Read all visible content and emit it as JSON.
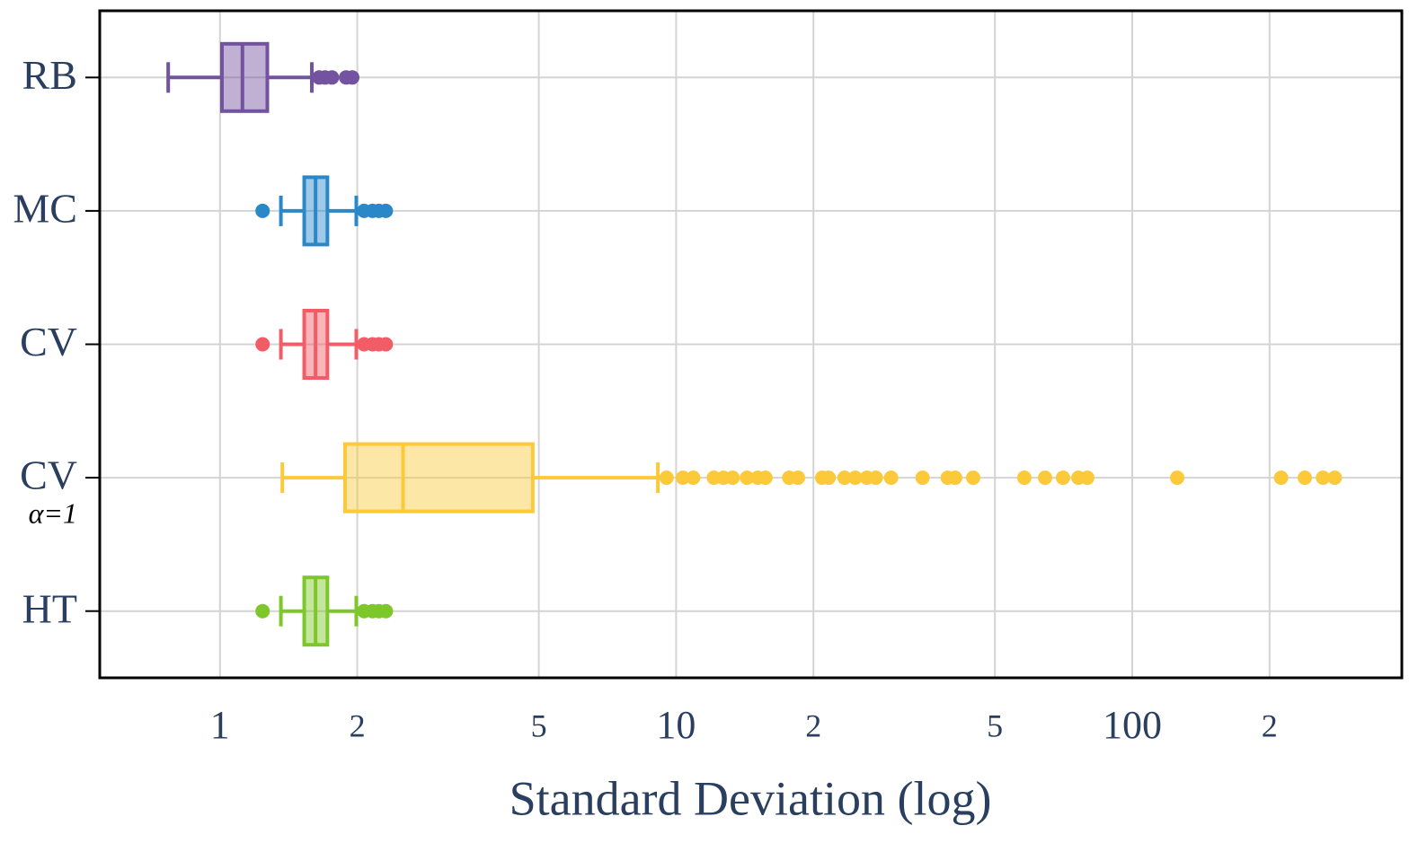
{
  "chart_data": {
    "type": "boxplot",
    "orientation": "horizontal",
    "x_label": "Standard Deviation (log)",
    "xscale": "log",
    "xlim": [
      0.545,
      390
    ],
    "xticks": [
      1,
      2,
      5,
      10,
      {
        "value": 20,
        "label": "2"
      },
      {
        "value": 50,
        "label": "5"
      },
      100,
      {
        "value": 200,
        "label": "2"
      }
    ],
    "grid": true,
    "series": [
      {
        "name": "RB",
        "color": "#7352a0",
        "whisker_low": 0.77,
        "q1": 1.01,
        "median": 1.12,
        "q3": 1.27,
        "whisker_high": 1.59,
        "outliers": [
          1.65,
          1.7,
          1.76,
          1.89,
          1.95
        ]
      },
      {
        "name": "MC",
        "color": "#2a88c8",
        "whisker_low": 1.36,
        "q1": 1.53,
        "median": 1.62,
        "q3": 1.72,
        "whisker_high": 1.99,
        "outliers": [
          1.24,
          2.07,
          2.16,
          2.23,
          2.31
        ]
      },
      {
        "name": "CV",
        "color": "#f25c66",
        "whisker_low": 1.36,
        "q1": 1.53,
        "median": 1.62,
        "q3": 1.72,
        "whisker_high": 1.99,
        "outliers": [
          1.24,
          2.07,
          2.16,
          2.23,
          2.31
        ]
      },
      {
        "name": "CV",
        "sublabel": "α=1",
        "color": "#fbc93a",
        "whisker_low": 1.37,
        "q1": 1.88,
        "median": 2.52,
        "q3": 4.85,
        "whisker_high": 9.12,
        "outliers": [
          9.53,
          10.35,
          10.9,
          12.1,
          12.7,
          13.3,
          14.3,
          15.1,
          15.7,
          17.7,
          18.5,
          20.9,
          21.6,
          23.4,
          24.7,
          26.2,
          27.4,
          29.6,
          34.7,
          39.4,
          40.9,
          44.8,
          58,
          64.4,
          70.5,
          76.2,
          79.7,
          125.5,
          212,
          239,
          262,
          278
        ]
      },
      {
        "name": "HT",
        "color": "#7ec72a",
        "whisker_low": 1.36,
        "q1": 1.53,
        "median": 1.62,
        "q3": 1.72,
        "whisker_high": 1.99,
        "outliers": [
          1.24,
          2.07,
          2.16,
          2.23,
          2.31
        ]
      }
    ]
  }
}
